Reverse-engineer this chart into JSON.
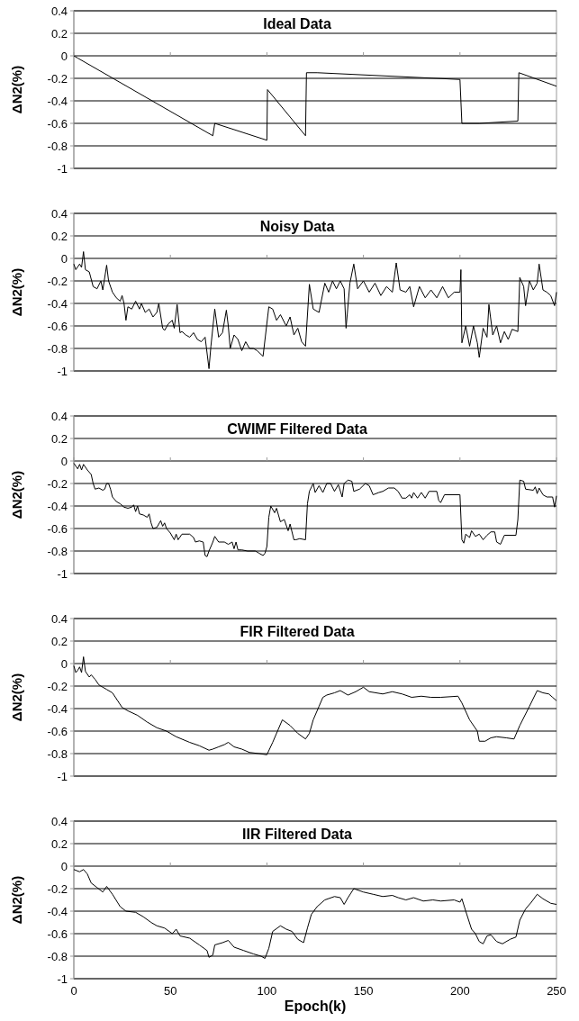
{
  "chart_data": [
    {
      "type": "line",
      "title": "Ideal Data",
      "ylabel": "ΔN2(%)",
      "xlim": [
        0,
        250
      ],
      "xticks": [
        0,
        50,
        100,
        150,
        200,
        250
      ],
      "ylim": [
        -1,
        0.4
      ],
      "yticks": [
        -1,
        -0.8,
        -0.6,
        -0.4,
        -0.2,
        0,
        0.2,
        0.4
      ],
      "grid": "y",
      "tick_labels": "y",
      "series": [
        {
          "color": "#000000",
          "x": [
            0,
            2,
            72,
            73,
            100,
            100.3,
            120,
            120.5,
            126,
            200,
            201,
            210,
            230,
            230.5,
            250
          ],
          "values": [
            0,
            -0.02,
            -0.71,
            -0.6,
            -0.75,
            -0.3,
            -0.71,
            -0.15,
            -0.15,
            -0.21,
            -0.6,
            -0.6,
            -0.58,
            -0.15,
            -0.27
          ]
        }
      ]
    },
    {
      "type": "line",
      "title": "Noisy Data",
      "ylabel": "ΔN2(%)",
      "xlim": [
        0,
        250
      ],
      "xticks": [
        0,
        50,
        100,
        150,
        200,
        250
      ],
      "ylim": [
        -1,
        0.4
      ],
      "yticks": [
        -1,
        -0.8,
        -0.6,
        -0.4,
        -0.2,
        0,
        0.2,
        0.4
      ],
      "grid": "y",
      "tick_labels": "y",
      "series": [
        {
          "color": "#000000",
          "x": [
            0,
            1,
            3,
            4,
            5,
            6,
            8,
            10,
            12,
            14,
            15,
            17,
            18,
            20,
            22,
            24,
            25,
            26,
            27,
            28,
            30,
            32,
            34,
            35,
            37,
            39,
            41,
            43,
            44,
            46,
            47,
            49,
            51,
            52,
            53.5,
            55,
            56,
            58,
            60,
            62,
            64,
            66,
            68,
            70,
            71,
            73,
            75,
            77,
            79,
            80,
            81,
            83,
            85,
            87,
            89,
            91,
            93,
            95,
            98,
            101,
            103,
            105,
            107,
            110,
            112,
            114,
            116,
            118,
            120,
            122,
            124,
            127,
            130,
            132,
            134,
            136,
            138,
            140,
            141,
            143,
            145,
            147,
            150,
            153,
            156,
            159,
            162,
            165,
            167,
            169,
            172,
            174,
            176,
            179,
            182,
            185,
            188,
            191,
            194,
            197,
            200,
            200.5,
            201,
            203,
            205,
            207,
            209,
            210,
            212,
            214,
            215,
            217,
            219,
            221,
            223,
            225,
            227,
            230,
            231,
            233,
            234,
            236,
            238,
            240,
            241,
            243,
            245,
            247,
            249,
            250
          ],
          "values": [
            -0.05,
            -0.1,
            -0.05,
            -0.08,
            0.06,
            -0.1,
            -0.12,
            -0.25,
            -0.27,
            -0.2,
            -0.28,
            -0.06,
            -0.2,
            -0.3,
            -0.35,
            -0.38,
            -0.33,
            -0.4,
            -0.55,
            -0.43,
            -0.45,
            -0.38,
            -0.45,
            -0.4,
            -0.48,
            -0.45,
            -0.52,
            -0.48,
            -0.4,
            -0.62,
            -0.64,
            -0.58,
            -0.55,
            -0.62,
            -0.41,
            -0.66,
            -0.65,
            -0.68,
            -0.7,
            -0.66,
            -0.72,
            -0.74,
            -0.7,
            -0.98,
            -0.78,
            -0.45,
            -0.7,
            -0.66,
            -0.46,
            -0.6,
            -0.8,
            -0.68,
            -0.72,
            -0.82,
            -0.74,
            -0.8,
            -0.8,
            -0.82,
            -0.87,
            -0.43,
            -0.45,
            -0.55,
            -0.5,
            -0.6,
            -0.52,
            -0.68,
            -0.62,
            -0.74,
            -0.78,
            -0.23,
            -0.45,
            -0.48,
            -0.22,
            -0.3,
            -0.2,
            -0.27,
            -0.2,
            -0.27,
            -0.62,
            -0.22,
            -0.05,
            -0.27,
            -0.2,
            -0.3,
            -0.22,
            -0.33,
            -0.25,
            -0.3,
            -0.04,
            -0.28,
            -0.3,
            -0.25,
            -0.43,
            -0.25,
            -0.35,
            -0.28,
            -0.35,
            -0.25,
            -0.35,
            -0.3,
            -0.3,
            -0.1,
            -0.75,
            -0.6,
            -0.78,
            -0.6,
            -0.75,
            -0.88,
            -0.62,
            -0.7,
            -0.41,
            -0.68,
            -0.6,
            -0.75,
            -0.65,
            -0.72,
            -0.63,
            -0.65,
            -0.17,
            -0.25,
            -0.42,
            -0.2,
            -0.28,
            -0.22,
            -0.05,
            -0.28,
            -0.3,
            -0.33,
            -0.42,
            -0.3
          ]
        }
      ]
    },
    {
      "type": "line",
      "title": "CWIMF Filtered Data",
      "ylabel": "ΔN2(%)",
      "xlim": [
        0,
        250
      ],
      "xticks": [
        0,
        50,
        100,
        150,
        200,
        250
      ],
      "ylim": [
        -1,
        0.4
      ],
      "yticks": [
        -1,
        -0.8,
        -0.6,
        -0.4,
        -0.2,
        0,
        0.2,
        0.4
      ],
      "grid": "y",
      "tick_labels": "y",
      "series": [
        {
          "color": "#000000",
          "x": [
            0,
            2,
            3,
            4,
            5,
            7,
            9,
            10,
            11,
            13,
            15,
            16,
            17,
            18,
            19,
            20,
            22,
            24,
            26,
            28,
            30,
            31,
            32,
            33,
            34,
            36,
            38,
            39,
            40,
            41,
            43,
            45,
            46,
            47,
            48,
            50,
            52,
            53,
            54,
            56,
            60,
            62,
            63,
            65,
            67,
            68,
            69,
            70,
            72,
            73,
            75,
            78,
            80,
            82,
            83,
            84,
            85,
            87,
            90,
            94,
            96,
            98,
            99,
            100,
            101,
            102,
            104,
            105,
            107,
            109,
            111,
            112,
            114,
            115,
            117,
            120,
            121,
            122,
            124,
            125,
            127,
            129,
            131,
            133,
            135,
            137,
            139,
            140,
            142,
            144,
            145,
            148,
            151,
            153,
            155,
            158,
            160,
            163,
            166,
            168,
            170,
            172,
            174,
            175,
            176,
            178,
            180,
            182,
            184,
            188,
            189,
            190,
            192,
            200,
            201,
            202,
            203,
            205,
            206,
            208,
            210,
            212,
            214,
            216,
            218,
            219,
            221,
            223,
            229,
            230,
            231,
            233,
            234,
            238,
            239,
            240,
            241,
            243,
            245,
            248,
            249,
            250
          ],
          "values": [
            -0.02,
            -0.07,
            -0.03,
            -0.08,
            -0.03,
            -0.08,
            -0.12,
            -0.2,
            -0.25,
            -0.24,
            -0.26,
            -0.25,
            -0.2,
            -0.2,
            -0.25,
            -0.32,
            -0.36,
            -0.38,
            -0.41,
            -0.42,
            -0.41,
            -0.39,
            -0.45,
            -0.4,
            -0.47,
            -0.48,
            -0.5,
            -0.47,
            -0.55,
            -0.6,
            -0.59,
            -0.53,
            -0.58,
            -0.55,
            -0.6,
            -0.64,
            -0.7,
            -0.65,
            -0.7,
            -0.65,
            -0.65,
            -0.68,
            -0.72,
            -0.71,
            -0.72,
            -0.84,
            -0.85,
            -0.8,
            -0.72,
            -0.67,
            -0.72,
            -0.72,
            -0.74,
            -0.72,
            -0.78,
            -0.72,
            -0.79,
            -0.79,
            -0.8,
            -0.8,
            -0.82,
            -0.84,
            -0.82,
            -0.76,
            -0.5,
            -0.4,
            -0.46,
            -0.42,
            -0.54,
            -0.52,
            -0.62,
            -0.56,
            -0.7,
            -0.7,
            -0.69,
            -0.7,
            -0.38,
            -0.27,
            -0.2,
            -0.28,
            -0.22,
            -0.28,
            -0.2,
            -0.2,
            -0.27,
            -0.21,
            -0.32,
            -0.2,
            -0.17,
            -0.18,
            -0.27,
            -0.25,
            -0.2,
            -0.22,
            -0.3,
            -0.28,
            -0.27,
            -0.24,
            -0.24,
            -0.27,
            -0.33,
            -0.33,
            -0.3,
            -0.33,
            -0.28,
            -0.33,
            -0.28,
            -0.33,
            -0.27,
            -0.27,
            -0.35,
            -0.37,
            -0.3,
            -0.3,
            -0.7,
            -0.73,
            -0.65,
            -0.68,
            -0.62,
            -0.67,
            -0.65,
            -0.7,
            -0.66,
            -0.63,
            -0.63,
            -0.72,
            -0.74,
            -0.66,
            -0.66,
            -0.52,
            -0.17,
            -0.18,
            -0.25,
            -0.26,
            -0.23,
            -0.29,
            -0.24,
            -0.3,
            -0.32,
            -0.32,
            -0.41,
            -0.31
          ]
        }
      ]
    },
    {
      "type": "line",
      "title": "FIR Filtered Data",
      "ylabel": "ΔN2(%)",
      "xlim": [
        0,
        250
      ],
      "xticks": [
        0,
        50,
        100,
        150,
        200,
        250
      ],
      "ylim": [
        -1,
        0.4
      ],
      "yticks": [
        -1,
        -0.8,
        -0.6,
        -0.4,
        -0.2,
        0,
        0.2,
        0.4
      ],
      "grid": "y",
      "tick_labels": "y",
      "series": [
        {
          "color": "#000000",
          "x": [
            0,
            1,
            2,
            3,
            4,
            5,
            6,
            8,
            9,
            11,
            13,
            15,
            17,
            20,
            25,
            28,
            33,
            38,
            43,
            48,
            53,
            60,
            65,
            70,
            72,
            75,
            78,
            80,
            83,
            87,
            91,
            96,
            100,
            103,
            108,
            112,
            116,
            120,
            122,
            124,
            127,
            129,
            131,
            135,
            138,
            142,
            146,
            150,
            153,
            160,
            165,
            170,
            175,
            180,
            185,
            190,
            199,
            201,
            205,
            209,
            210,
            213,
            216,
            219,
            224,
            228,
            231,
            236,
            240,
            243,
            246,
            248,
            250
          ],
          "values": [
            -0.02,
            -0.08,
            -0.06,
            -0.03,
            -0.08,
            0.06,
            -0.07,
            -0.12,
            -0.1,
            -0.14,
            -0.19,
            -0.21,
            -0.23,
            -0.26,
            -0.39,
            -0.42,
            -0.46,
            -0.52,
            -0.57,
            -0.6,
            -0.65,
            -0.7,
            -0.73,
            -0.77,
            -0.76,
            -0.74,
            -0.72,
            -0.7,
            -0.74,
            -0.76,
            -0.79,
            -0.8,
            -0.81,
            -0.7,
            -0.5,
            -0.55,
            -0.62,
            -0.67,
            -0.62,
            -0.5,
            -0.38,
            -0.3,
            -0.28,
            -0.26,
            -0.24,
            -0.28,
            -0.25,
            -0.21,
            -0.25,
            -0.27,
            -0.25,
            -0.27,
            -0.3,
            -0.29,
            -0.3,
            -0.3,
            -0.29,
            -0.35,
            -0.5,
            -0.6,
            -0.69,
            -0.69,
            -0.66,
            -0.65,
            -0.66,
            -0.67,
            -0.55,
            -0.38,
            -0.24,
            -0.26,
            -0.27,
            -0.3,
            -0.33
          ]
        }
      ]
    },
    {
      "type": "line",
      "title": "IIR Filtered Data",
      "ylabel": "ΔN2(%)",
      "xlabel": "Epoch(k)",
      "xlim": [
        0,
        250
      ],
      "xticks": [
        0,
        50,
        100,
        150,
        200,
        250
      ],
      "ylim": [
        -1,
        0.4
      ],
      "yticks": [
        -1,
        -0.8,
        -0.6,
        -0.4,
        -0.2,
        0,
        0.2,
        0.4
      ],
      "grid": "y",
      "series": [
        {
          "color": "#000000",
          "x": [
            0,
            3,
            5,
            7,
            9,
            12,
            15,
            17,
            20,
            24,
            27,
            32,
            36,
            40,
            43,
            47,
            51,
            53,
            55,
            60,
            65,
            69,
            70,
            72,
            73,
            77,
            80,
            83,
            88,
            93,
            97,
            99,
            101,
            103,
            107,
            110,
            113,
            116,
            119,
            121,
            123,
            126,
            130,
            135,
            138,
            140,
            142,
            145,
            150,
            155,
            160,
            165,
            168,
            172,
            176,
            181,
            186,
            190,
            197,
            200,
            201,
            203,
            206,
            208,
            210,
            212,
            214,
            216,
            219,
            222,
            226,
            229,
            231,
            234,
            237,
            240,
            243,
            247,
            250
          ],
          "values": [
            -0.03,
            -0.05,
            -0.03,
            -0.07,
            -0.15,
            -0.19,
            -0.23,
            -0.18,
            -0.25,
            -0.36,
            -0.4,
            -0.41,
            -0.45,
            -0.5,
            -0.53,
            -0.55,
            -0.6,
            -0.56,
            -0.62,
            -0.64,
            -0.7,
            -0.75,
            -0.81,
            -0.79,
            -0.7,
            -0.68,
            -0.66,
            -0.72,
            -0.75,
            -0.78,
            -0.8,
            -0.82,
            -0.73,
            -0.58,
            -0.53,
            -0.56,
            -0.58,
            -0.65,
            -0.68,
            -0.55,
            -0.43,
            -0.36,
            -0.3,
            -0.27,
            -0.28,
            -0.34,
            -0.28,
            -0.2,
            -0.23,
            -0.25,
            -0.27,
            -0.26,
            -0.28,
            -0.3,
            -0.28,
            -0.31,
            -0.3,
            -0.31,
            -0.3,
            -0.32,
            -0.29,
            -0.4,
            -0.56,
            -0.6,
            -0.67,
            -0.69,
            -0.62,
            -0.61,
            -0.67,
            -0.69,
            -0.65,
            -0.63,
            -0.48,
            -0.38,
            -0.32,
            -0.25,
            -0.29,
            -0.33,
            -0.34
          ]
        }
      ]
    }
  ]
}
